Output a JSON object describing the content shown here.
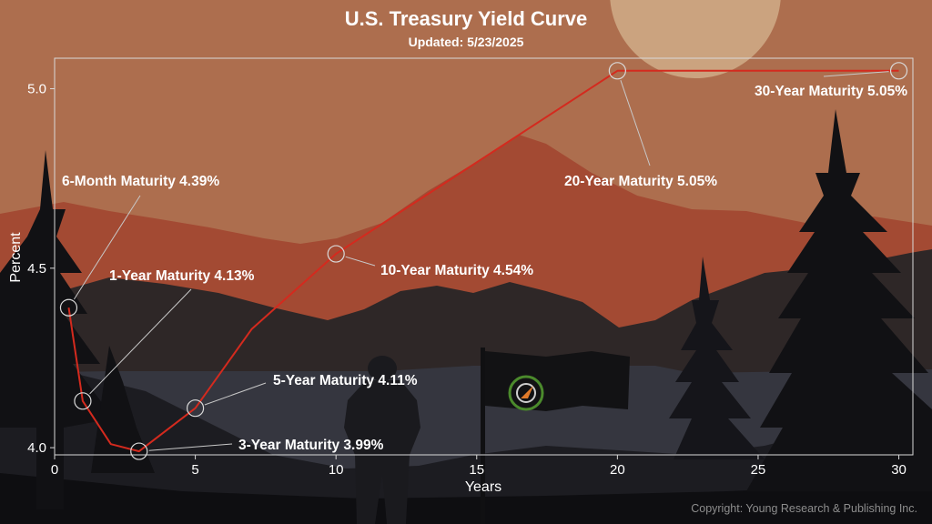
{
  "header": {
    "title": "U.S. Treasury Yield Curve",
    "subtitle": "Updated: 5/23/2025"
  },
  "footer": {
    "copyright": "Copyright: Young Research & Publishing Inc."
  },
  "colors": {
    "line": "#d42a1e",
    "sky": "#ad6e4e",
    "mountain_far": "#a34a33",
    "mountain_mid": "#2e2727",
    "ground": "#141418"
  },
  "chart_data": {
    "type": "line",
    "title": "U.S. Treasury Yield Curve",
    "subtitle": "Updated: 5/23/2025",
    "xlabel": "Years",
    "ylabel": "Percent",
    "xlim": [
      0,
      30.5
    ],
    "ylim": [
      3.98,
      5.085
    ],
    "xticks": [
      0,
      5,
      10,
      15,
      20,
      25,
      30
    ],
    "yticks": [
      4.0,
      4.5,
      5.0
    ],
    "ytick_labels": [
      "4.0",
      "4.5",
      "5.0"
    ],
    "grid": false,
    "series": [
      {
        "x": [
          0.5,
          1,
          2,
          3,
          5,
          7,
          10,
          20,
          30
        ],
        "y": [
          4.39,
          4.13,
          4.01,
          3.99,
          4.11,
          4.33,
          4.54,
          5.05,
          5.05
        ]
      }
    ],
    "annotations": [
      {
        "label": "6-Month Maturity 4.39%",
        "x": 0.5,
        "y": 4.39
      },
      {
        "label": "1-Year Maturity 4.13%",
        "x": 1,
        "y": 4.13
      },
      {
        "label": "3-Year Maturity 3.99%",
        "x": 3,
        "y": 3.99
      },
      {
        "label": "5-Year Maturity 4.11%",
        "x": 5,
        "y": 4.11
      },
      {
        "label": "10-Year Maturity 4.54%",
        "x": 10,
        "y": 4.54
      },
      {
        "label": "20-Year Maturity 5.05%",
        "x": 20,
        "y": 5.05
      },
      {
        "label": "30-Year Maturity 5.05%",
        "x": 30,
        "y": 5.05
      }
    ]
  }
}
